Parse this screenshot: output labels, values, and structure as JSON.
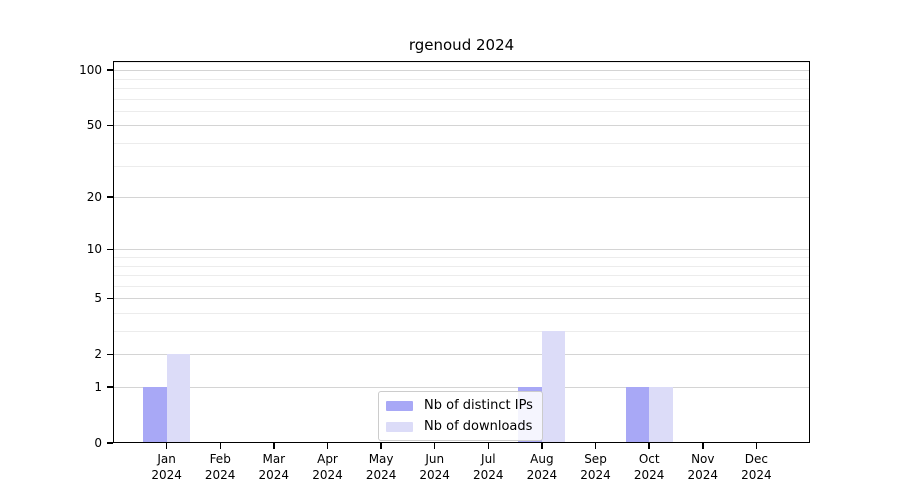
{
  "chart_data": {
    "type": "bar",
    "title": "rgenoud 2024",
    "x_ticks": [
      {
        "month": "Jan",
        "year": "2024"
      },
      {
        "month": "Feb",
        "year": "2024"
      },
      {
        "month": "Mar",
        "year": "2024"
      },
      {
        "month": "Apr",
        "year": "2024"
      },
      {
        "month": "May",
        "year": "2024"
      },
      {
        "month": "Jun",
        "year": "2024"
      },
      {
        "month": "Jul",
        "year": "2024"
      },
      {
        "month": "Aug",
        "year": "2024"
      },
      {
        "month": "Sep",
        "year": "2024"
      },
      {
        "month": "Oct",
        "year": "2024"
      },
      {
        "month": "Nov",
        "year": "2024"
      },
      {
        "month": "Dec",
        "year": "2024"
      }
    ],
    "series": [
      {
        "name": "Nb of distinct IPs",
        "color": "#a8a8f6",
        "values": [
          1,
          0,
          0,
          0,
          0,
          0,
          0,
          1,
          0,
          1,
          0,
          0
        ]
      },
      {
        "name": "Nb of downloads",
        "color": "#dcdcf8",
        "values": [
          2,
          0,
          0,
          0,
          0,
          0,
          0,
          3,
          0,
          1,
          0,
          0
        ]
      }
    ],
    "y_scale": "log1p",
    "ylim": [
      0,
      112
    ],
    "y_major_ticks": [
      0,
      1,
      2,
      5,
      10,
      20,
      50,
      100
    ],
    "y_minor_gridlines": [
      3,
      4,
      6,
      7,
      8,
      9,
      30,
      40,
      60,
      70,
      80,
      90,
      110
    ],
    "grid": "both",
    "legend_position": "lower center",
    "colors": {
      "major_grid": "#d4d4d4",
      "minor_grid": "#ececec",
      "spine": "#000000",
      "text": "#000000",
      "background": "#ffffff"
    }
  }
}
